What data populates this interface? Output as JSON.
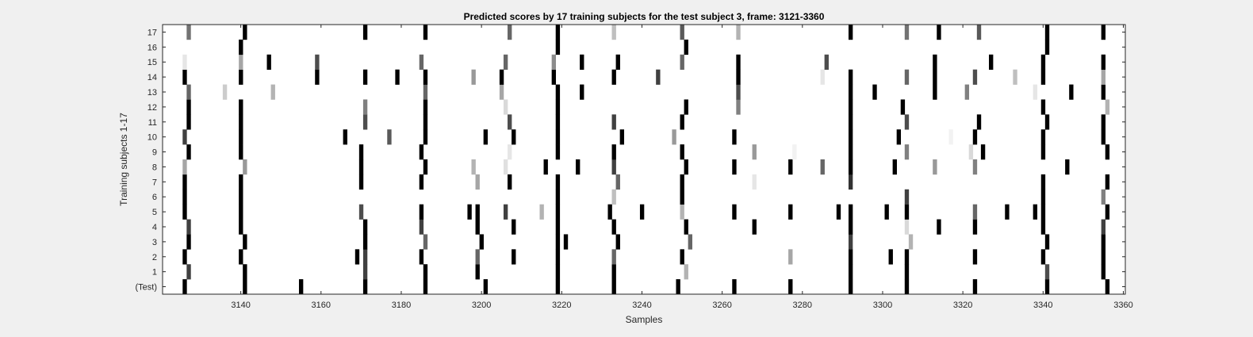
{
  "chart_data": {
    "type": "heatmap",
    "title": "Predicted scores by 17 training subjects for the test subject 3, frame: 3121-3360",
    "xlabel": "Samples",
    "ylabel": "Training subjects 1-17",
    "xlim": [
      3121,
      3360
    ],
    "x_ticks": [
      3140,
      3160,
      3180,
      3200,
      3220,
      3240,
      3260,
      3280,
      3300,
      3320,
      3340,
      3360
    ],
    "y_tick_labels": [
      "(Test)",
      "1",
      "2",
      "3",
      "4",
      "5",
      "6",
      "7",
      "8",
      "9",
      "10",
      "11",
      "12",
      "13",
      "14",
      "15",
      "16",
      "17"
    ],
    "colormap": "gray (white = 0, black = 1)",
    "grid": false,
    "rows": [
      {
        "label": "(Test)",
        "marks": [
          [
            3126,
            1
          ],
          [
            3141,
            1
          ],
          [
            3155,
            1
          ],
          [
            3171,
            1
          ],
          [
            3186,
            1
          ],
          [
            3201,
            1
          ],
          [
            3219,
            1
          ],
          [
            3233,
            1
          ],
          [
            3249,
            1
          ],
          [
            3263,
            1
          ],
          [
            3277,
            1
          ],
          [
            3292,
            1
          ],
          [
            3306,
            1
          ],
          [
            3323,
            1
          ],
          [
            3341,
            1
          ],
          [
            3356,
            1
          ]
        ]
      },
      {
        "label": "1",
        "marks": [
          [
            3127,
            0.75
          ],
          [
            3141,
            1
          ],
          [
            3171,
            0.75
          ],
          [
            3186,
            1
          ],
          [
            3199,
            1
          ],
          [
            3219,
            1
          ],
          [
            3233,
            1
          ],
          [
            3251,
            0.3
          ],
          [
            3292,
            1
          ],
          [
            3306,
            1
          ],
          [
            3341,
            0.7
          ],
          [
            3355,
            1
          ]
        ]
      },
      {
        "label": "2",
        "marks": [
          [
            3126,
            1
          ],
          [
            3140,
            1
          ],
          [
            3169,
            1
          ],
          [
            3171,
            0.75
          ],
          [
            3185,
            1
          ],
          [
            3199,
            0.6
          ],
          [
            3208,
            1
          ],
          [
            3219,
            1
          ],
          [
            3233,
            0.6
          ],
          [
            3250,
            1
          ],
          [
            3277,
            0.35
          ],
          [
            3292,
            1
          ],
          [
            3302,
            1
          ],
          [
            3306,
            1
          ],
          [
            3323,
            1
          ],
          [
            3340,
            1
          ],
          [
            3355,
            1
          ]
        ]
      },
      {
        "label": "3",
        "marks": [
          [
            3127,
            1
          ],
          [
            3141,
            1
          ],
          [
            3171,
            1
          ],
          [
            3186,
            0.6
          ],
          [
            3200,
            1
          ],
          [
            3219,
            1
          ],
          [
            3221,
            1
          ],
          [
            3234,
            1
          ],
          [
            3252,
            0.6
          ],
          [
            3292,
            0.75
          ],
          [
            3307,
            0.3
          ],
          [
            3341,
            1
          ],
          [
            3355,
            1
          ]
        ]
      },
      {
        "label": "4",
        "marks": [
          [
            3127,
            0.75
          ],
          [
            3140,
            1
          ],
          [
            3171,
            1
          ],
          [
            3185,
            0.75
          ],
          [
            3199,
            1
          ],
          [
            3208,
            1
          ],
          [
            3219,
            1
          ],
          [
            3233,
            1
          ],
          [
            3251,
            1
          ],
          [
            3268,
            1
          ],
          [
            3292,
            1
          ],
          [
            3306,
            0.15
          ],
          [
            3314,
            1
          ],
          [
            3323,
            1
          ],
          [
            3340,
            1
          ],
          [
            3355,
            0.75
          ]
        ]
      },
      {
        "label": "5",
        "marks": [
          [
            3126,
            1
          ],
          [
            3140,
            1
          ],
          [
            3170,
            0.7
          ],
          [
            3185,
            1
          ],
          [
            3197,
            1
          ],
          [
            3199,
            1
          ],
          [
            3206,
            0.75
          ],
          [
            3215,
            0.3
          ],
          [
            3219,
            1
          ],
          [
            3232,
            1
          ],
          [
            3240,
            1
          ],
          [
            3250,
            0.3
          ],
          [
            3263,
            1
          ],
          [
            3277,
            1
          ],
          [
            3289,
            1
          ],
          [
            3292,
            1
          ],
          [
            3301,
            1
          ],
          [
            3306,
            1
          ],
          [
            3323,
            0.6
          ],
          [
            3331,
            1
          ],
          [
            3338,
            1
          ],
          [
            3340,
            1
          ],
          [
            3356,
            1
          ]
        ]
      },
      {
        "label": "6",
        "marks": [
          [
            3126,
            1
          ],
          [
            3140,
            1
          ],
          [
            3219,
            1
          ],
          [
            3233,
            0.25
          ],
          [
            3250,
            1
          ],
          [
            3306,
            0.75
          ],
          [
            3340,
            1
          ],
          [
            3355,
            0.5
          ]
        ]
      },
      {
        "label": "7",
        "marks": [
          [
            3126,
            1
          ],
          [
            3140,
            1
          ],
          [
            3170,
            1
          ],
          [
            3185,
            1
          ],
          [
            3199,
            0.35
          ],
          [
            3207,
            1
          ],
          [
            3219,
            1
          ],
          [
            3234,
            0.6
          ],
          [
            3250,
            1
          ],
          [
            3268,
            0.1
          ],
          [
            3292,
            0.8
          ],
          [
            3340,
            1
          ],
          [
            3356,
            1
          ]
        ]
      },
      {
        "label": "8",
        "marks": [
          [
            3126,
            0.35
          ],
          [
            3141,
            0.4
          ],
          [
            3170,
            1
          ],
          [
            3186,
            1
          ],
          [
            3198,
            0.3
          ],
          [
            3206,
            0.12
          ],
          [
            3216,
            1
          ],
          [
            3224,
            1
          ],
          [
            3233,
            0.75
          ],
          [
            3251,
            1
          ],
          [
            3263,
            1
          ],
          [
            3277,
            1
          ],
          [
            3285,
            0.6
          ],
          [
            3292,
            1
          ],
          [
            3303,
            1
          ],
          [
            3313,
            0.4
          ],
          [
            3323,
            0.5
          ],
          [
            3346,
            1
          ]
        ]
      },
      {
        "label": "9",
        "marks": [
          [
            3127,
            1
          ],
          [
            3140,
            1
          ],
          [
            3170,
            1
          ],
          [
            3185,
            1
          ],
          [
            3207,
            0.1
          ],
          [
            3219,
            1
          ],
          [
            3233,
            1
          ],
          [
            3250,
            1
          ],
          [
            3268,
            0.4
          ],
          [
            3278,
            0.05
          ],
          [
            3292,
            1
          ],
          [
            3306,
            0.5
          ],
          [
            3322,
            0.15
          ],
          [
            3325,
            1
          ],
          [
            3340,
            1
          ],
          [
            3356,
            1
          ]
        ]
      },
      {
        "label": "10",
        "marks": [
          [
            3126,
            0.75
          ],
          [
            3140,
            1
          ],
          [
            3166,
            1
          ],
          [
            3177,
            0.65
          ],
          [
            3186,
            1
          ],
          [
            3201,
            1
          ],
          [
            3208,
            1
          ],
          [
            3219,
            1
          ],
          [
            3235,
            1
          ],
          [
            3248,
            0.4
          ],
          [
            3263,
            1
          ],
          [
            3292,
            1
          ],
          [
            3304,
            1
          ],
          [
            3317,
            0.05
          ],
          [
            3323,
            1
          ],
          [
            3340,
            1
          ],
          [
            3355,
            1
          ]
        ]
      },
      {
        "label": "11",
        "marks": [
          [
            3127,
            1
          ],
          [
            3140,
            1
          ],
          [
            3171,
            0.7
          ],
          [
            3186,
            1
          ],
          [
            3207,
            0.7
          ],
          [
            3219,
            1
          ],
          [
            3233,
            0.75
          ],
          [
            3250,
            1
          ],
          [
            3292,
            1
          ],
          [
            3306,
            0.7
          ],
          [
            3324,
            1
          ],
          [
            3341,
            1
          ],
          [
            3355,
            1
          ]
        ]
      },
      {
        "label": "12",
        "marks": [
          [
            3127,
            1
          ],
          [
            3140,
            1
          ],
          [
            3171,
            0.5
          ],
          [
            3186,
            1
          ],
          [
            3206,
            0.15
          ],
          [
            3219,
            1
          ],
          [
            3251,
            1
          ],
          [
            3264,
            0.5
          ],
          [
            3292,
            1
          ],
          [
            3305,
            1
          ],
          [
            3340,
            1
          ],
          [
            3356,
            0.3
          ]
        ]
      },
      {
        "label": "13",
        "marks": [
          [
            3127,
            0.6
          ],
          [
            3136,
            0.2
          ],
          [
            3148,
            0.3
          ],
          [
            3186,
            0.6
          ],
          [
            3205,
            0.35
          ],
          [
            3219,
            1
          ],
          [
            3225,
            1
          ],
          [
            3264,
            0.7
          ],
          [
            3292,
            1
          ],
          [
            3298,
            1
          ],
          [
            3313,
            1
          ],
          [
            3321,
            0.5
          ],
          [
            3338,
            0.1
          ],
          [
            3347,
            1
          ],
          [
            3355,
            1
          ]
        ]
      },
      {
        "label": "14",
        "marks": [
          [
            3126,
            1
          ],
          [
            3140,
            1
          ],
          [
            3159,
            1
          ],
          [
            3171,
            1
          ],
          [
            3179,
            1
          ],
          [
            3186,
            1
          ],
          [
            3198,
            0.4
          ],
          [
            3205,
            1
          ],
          [
            3218,
            1
          ],
          [
            3233,
            1
          ],
          [
            3244,
            0.75
          ],
          [
            3264,
            1
          ],
          [
            3285,
            0.1
          ],
          [
            3292,
            1
          ],
          [
            3306,
            0.6
          ],
          [
            3313,
            1
          ],
          [
            3323,
            0.7
          ],
          [
            3333,
            0.25
          ],
          [
            3340,
            1
          ],
          [
            3355,
            0.35
          ]
        ]
      },
      {
        "label": "15",
        "marks": [
          [
            3126,
            0.1
          ],
          [
            3140,
            0.35
          ],
          [
            3147,
            1
          ],
          [
            3159,
            0.7
          ],
          [
            3185,
            0.6
          ],
          [
            3206,
            0.6
          ],
          [
            3218,
            0.45
          ],
          [
            3225,
            1
          ],
          [
            3234,
            1
          ],
          [
            3250,
            0.6
          ],
          [
            3264,
            1
          ],
          [
            3286,
            0.7
          ],
          [
            3313,
            1
          ],
          [
            3327,
            1
          ],
          [
            3340,
            1
          ],
          [
            3355,
            1
          ]
        ]
      },
      {
        "label": "16",
        "marks": [
          [
            3140,
            1
          ],
          [
            3219,
            1
          ],
          [
            3251,
            1
          ],
          [
            3341,
            1
          ]
        ]
      },
      {
        "label": "17",
        "marks": [
          [
            3127,
            0.55
          ],
          [
            3141,
            1
          ],
          [
            3171,
            1
          ],
          [
            3186,
            1
          ],
          [
            3207,
            0.6
          ],
          [
            3219,
            1
          ],
          [
            3233,
            0.25
          ],
          [
            3250,
            0.65
          ],
          [
            3264,
            0.3
          ],
          [
            3292,
            1
          ],
          [
            3306,
            0.55
          ],
          [
            3314,
            1
          ],
          [
            3324,
            0.65
          ],
          [
            3341,
            1
          ],
          [
            3355,
            1
          ]
        ]
      }
    ]
  }
}
